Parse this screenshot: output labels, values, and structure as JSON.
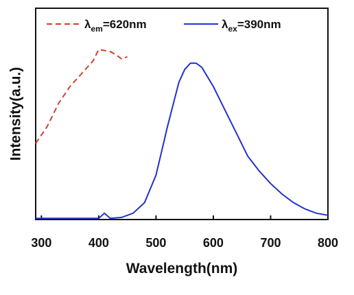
{
  "chart_data": {
    "type": "line",
    "xlabel": "Wavelength(nm)",
    "ylabel": "Intensity(a.u.)",
    "xlim": [
      290,
      800
    ],
    "xticks": [
      300,
      400,
      500,
      600,
      700,
      800
    ],
    "ylim": [
      0,
      1
    ],
    "series": [
      {
        "name": "λem=620nm",
        "color": "#d0402a",
        "dashed": true,
        "x": [
          290,
          310,
          330,
          350,
          370,
          390,
          400,
          410,
          420,
          430,
          440,
          450
        ],
        "values": [
          0.36,
          0.44,
          0.55,
          0.63,
          0.69,
          0.75,
          0.805,
          0.8,
          0.795,
          0.78,
          0.76,
          0.77
        ]
      },
      {
        "name": "λex=390nm",
        "color": "#2030d0",
        "dashed": false,
        "x": [
          290,
          400,
          410,
          420,
          440,
          460,
          480,
          500,
          520,
          540,
          550,
          560,
          570,
          580,
          600,
          620,
          640,
          660,
          680,
          700,
          720,
          740,
          760,
          780,
          800
        ],
        "values": [
          0.006,
          0.006,
          0.03,
          0.006,
          0.01,
          0.03,
          0.08,
          0.21,
          0.44,
          0.65,
          0.71,
          0.74,
          0.74,
          0.72,
          0.63,
          0.52,
          0.41,
          0.3,
          0.23,
          0.17,
          0.12,
          0.08,
          0.05,
          0.03,
          0.02
        ]
      }
    ]
  }
}
